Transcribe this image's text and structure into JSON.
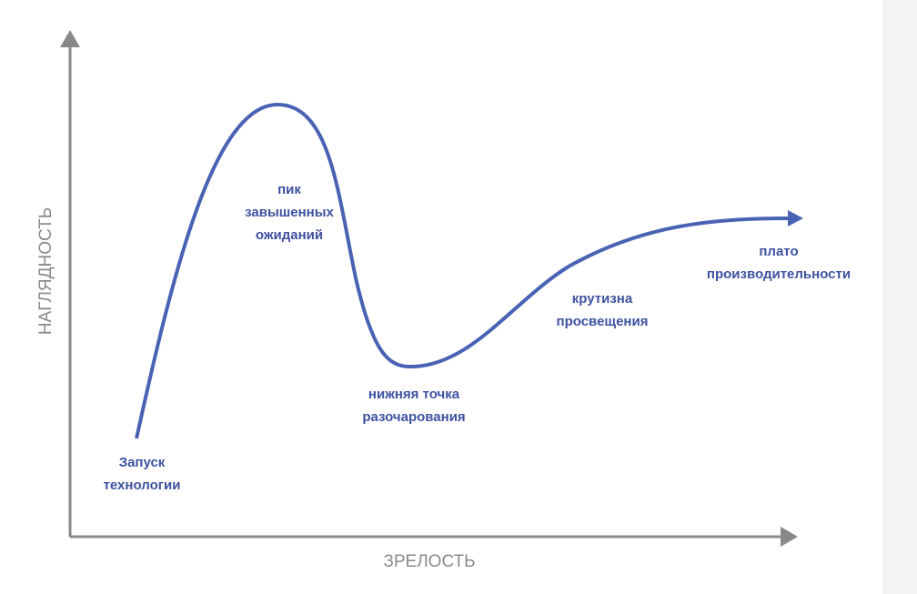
{
  "axes": {
    "y_label": "НАГЛЯДНОСТЬ",
    "x_label": "ЗРЕЛОСТЬ"
  },
  "phases": [
    {
      "lines": [
        "Запуск",
        "технологии"
      ]
    },
    {
      "lines": [
        "пик",
        "завышенных",
        "ожиданий"
      ]
    },
    {
      "lines": [
        "нижняя точка",
        "разочарования"
      ]
    },
    {
      "lines": [
        "крутизна",
        "просвещения"
      ]
    },
    {
      "lines": [
        "плато",
        "производительности"
      ]
    }
  ]
}
